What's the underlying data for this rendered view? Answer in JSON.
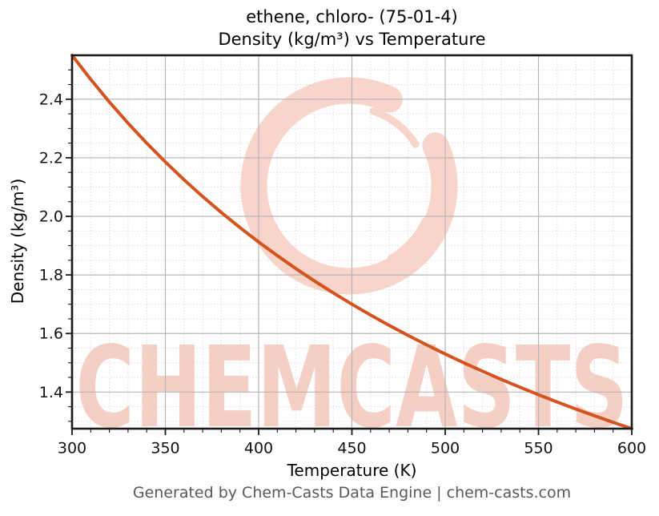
{
  "titles": {
    "line1": "ethene, chloro- (75-01-4)",
    "line2": "Density (kg/m³) vs Temperature"
  },
  "footer": {
    "text": "Generated by Chem-Casts Data Engine | chem-casts.com"
  },
  "watermark": {
    "text": "CHEMCASTS",
    "text_color": "#f6cfc4",
    "logo": "brush-circle",
    "logo_color": "#f8d4ca"
  },
  "chart_data": {
    "type": "line",
    "title": "ethene, chloro- (75-01-4)",
    "subtitle": "Density (kg/m³) vs Temperature",
    "xlabel": "Temperature (K)",
    "ylabel": "Density (kg/m³)",
    "xlim": [
      300,
      600
    ],
    "ylim": [
      1.275,
      2.55
    ],
    "xticks": [
      300,
      350,
      400,
      450,
      500,
      550,
      600
    ],
    "xtick_labels": [
      "300",
      "350",
      "400",
      "450",
      "500",
      "550",
      "600"
    ],
    "yticks": [
      1.4,
      1.6,
      1.8,
      2.0,
      2.2,
      2.4
    ],
    "ytick_labels": [
      "1.4",
      "1.6",
      "1.8",
      "2.0",
      "2.2",
      "2.4"
    ],
    "x_minor_step": 10,
    "y_minor_step": 0.05,
    "grid": true,
    "legend": "none",
    "line_color": "#d4531f",
    "line_width": 4,
    "axis_color": "#1a1a1a",
    "tick_label_color": "#111111",
    "grid_major_color": "#b6b6b6",
    "grid_minor_color": "#d9d9d9",
    "series": [
      {
        "name": "Density (kg/m³)",
        "x": [
          300,
          310,
          320,
          330,
          340,
          350,
          360,
          370,
          380,
          390,
          400,
          410,
          420,
          430,
          440,
          450,
          460,
          470,
          480,
          490,
          500,
          510,
          520,
          530,
          540,
          550,
          560,
          570,
          580,
          590,
          600
        ],
        "y": [
          2.55,
          2.4677,
          2.3906,
          2.3182,
          2.25,
          2.1857,
          2.125,
          2.0676,
          2.0132,
          1.9615,
          1.9125,
          1.8659,
          1.8214,
          1.7791,
          1.7386,
          1.7,
          1.663,
          1.6277,
          1.5938,
          1.5612,
          1.53,
          1.5,
          1.4712,
          1.4434,
          1.4167,
          1.3909,
          1.3661,
          1.3421,
          1.319,
          1.2966,
          1.275
        ]
      }
    ]
  }
}
